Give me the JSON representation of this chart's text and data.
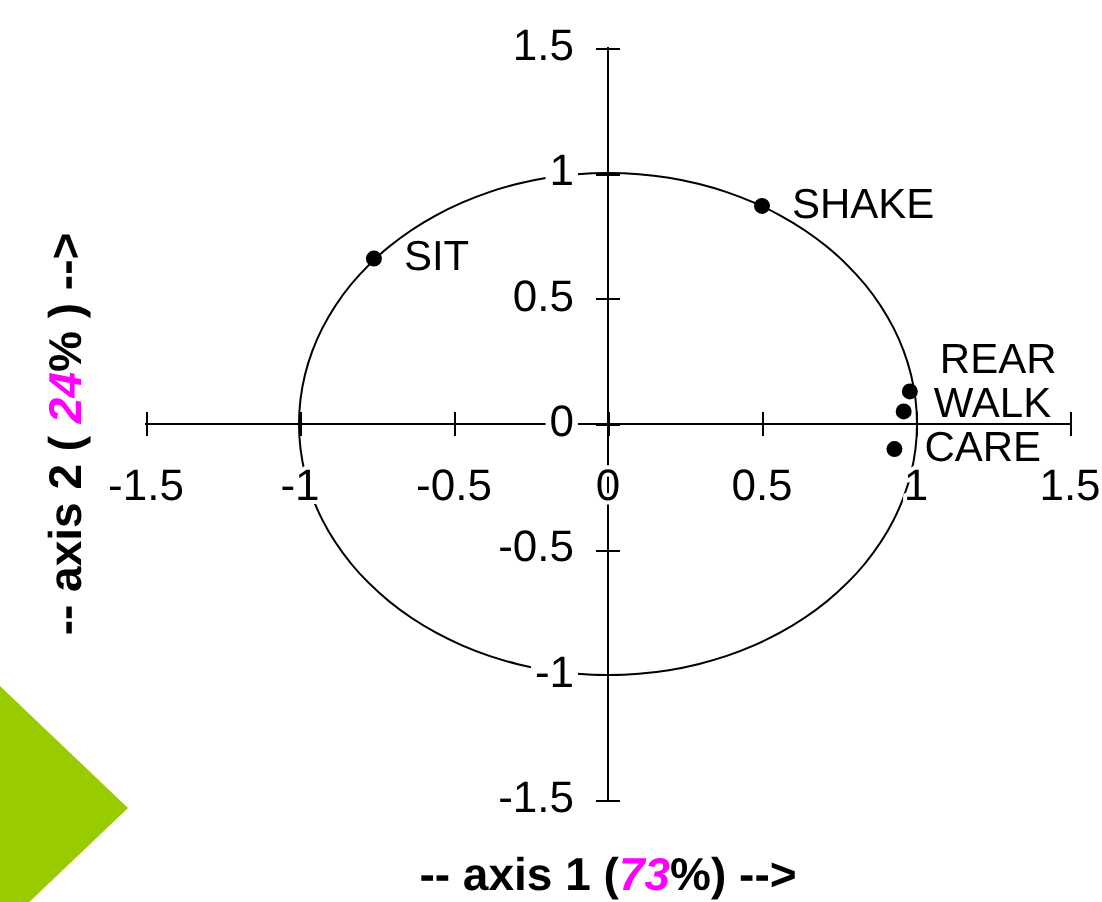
{
  "chart_data": {
    "type": "scatter",
    "xlabel": "-- axis 1 (73%) -->",
    "ylabel": "-- axis 2 ( 24% ) -->",
    "series": [
      {
        "type": "scatter",
        "color": "#000000",
        "x": [
          -0.76,
          0.5,
          0.98,
          0.96,
          0.93
        ],
        "values": [
          0.66,
          0.87,
          0.13,
          0.05,
          -0.1
        ]
      }
    ],
    "xlim": [
      -1.5,
      1.5
    ],
    "ylim": [
      -1.5,
      1.5
    ],
    "xticks": [
      -1.5,
      -1,
      -0.5,
      0,
      0.5,
      1,
      1.5
    ],
    "yticks": [
      -1.5,
      -1,
      -0.5,
      0,
      0.5,
      1,
      1.5
    ],
    "marker": "circle",
    "annotations": [
      {
        "text": "SIT",
        "x": -0.76,
        "y": 0.66
      },
      {
        "text": "SHAKE",
        "x": 0.5,
        "y": 0.87
      },
      {
        "text": "REAR",
        "x": 0.98,
        "y": 0.13
      },
      {
        "text": "WALK",
        "x": 0.96,
        "y": 0.05
      },
      {
        "text": "CARE",
        "x": 0.93,
        "y": -0.1
      }
    ]
  }
}
